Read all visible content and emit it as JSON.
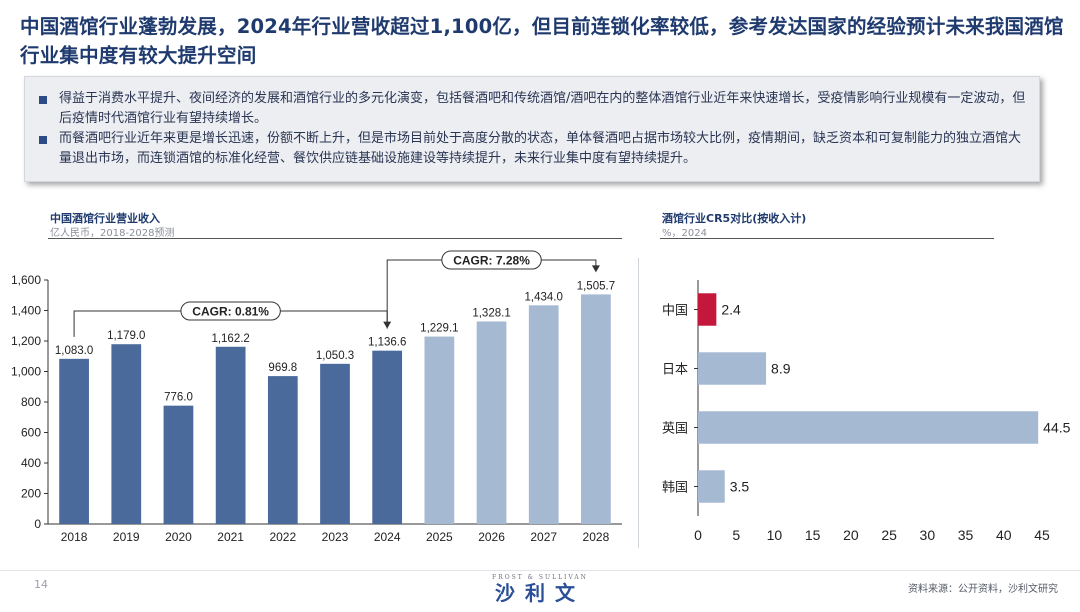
{
  "header": {
    "title": "中国酒馆行业蓬勃发展，2024年行业营收超过1,100亿，但目前连锁化率较低，参考发达国家的经验预计未来我国酒馆行业集中度有较大提升空间"
  },
  "summary": {
    "bullets": [
      "得益于消费水平提升、夜间经济的发展和酒馆行业的多元化演变，包括餐酒吧和传统酒馆/酒吧在内的整体酒馆行业近年来快速增长，受疫情影响行业规模有一定波动，但后疫情时代酒馆行业有望持续增长。",
      "而餐酒吧行业近年来更是增长迅速，份额不断上升，但是市场目前处于高度分散的状态，单体餐酒吧占据市场较大比例，疫情期间，缺乏资本和可复制能力的独立酒馆大量退出市场，而连锁酒馆的标准化经营、餐饮供应链基础设施建设等持续提升，未来行业集中度有望持续提升。"
    ]
  },
  "colors": {
    "actual_bar": "#4a6a9c",
    "forecast_bar": "#a6b9d3",
    "highlight_bar": "#c4173c",
    "hbar_default": "#a6b9d3"
  },
  "chart_data": [
    {
      "type": "bar",
      "title": "中国酒馆行业营业收入",
      "subtitle": "亿人民币，2018-2028预测",
      "categories": [
        "2018",
        "2019",
        "2020",
        "2021",
        "2022",
        "2023",
        "2024",
        "2025",
        "2026",
        "2027",
        "2028"
      ],
      "values": [
        1083.0,
        1179.0,
        776.0,
        1162.2,
        969.8,
        1050.3,
        1136.6,
        1229.1,
        1328.1,
        1434.0,
        1505.7
      ],
      "value_labels": [
        "1,083.0",
        "1,179.0",
        "776.0",
        "1,162.2",
        "969.8",
        "1,050.3",
        "1,136.6",
        "1,229.1",
        "1,328.1",
        "1,434.0",
        "1,505.7"
      ],
      "forecast_from": "2025",
      "ylim": [
        0,
        1600
      ],
      "yticks": [
        0,
        200,
        400,
        600,
        800,
        1000,
        1200,
        1400,
        1600
      ],
      "ytick_labels": [
        "0",
        "200",
        "400",
        "600",
        "800",
        "1,000",
        "1,200",
        "1,400",
        "1,600"
      ],
      "annotations": [
        {
          "label": "CAGR: 0.81%",
          "from": "2018",
          "to": "2024"
        },
        {
          "label": "CAGR: 7.28%",
          "from": "2024",
          "to": "2028"
        }
      ],
      "grid": false
    },
    {
      "type": "bar",
      "orientation": "horizontal",
      "title": "酒馆行业CR5对比(按收入计)",
      "subtitle": "%，2024",
      "categories": [
        "中国",
        "日本",
        "英国",
        "韩国"
      ],
      "values": [
        2.4,
        8.9,
        44.5,
        3.5
      ],
      "value_labels": [
        "2.4",
        "8.9",
        "44.5",
        "3.5"
      ],
      "highlight": "中国",
      "xlim": [
        0,
        45
      ],
      "xticks": [
        0,
        5,
        10,
        15,
        20,
        25,
        30,
        35,
        40,
        45
      ],
      "grid": false
    }
  ],
  "footer": {
    "page_number": "14",
    "logo_text": "沙利文",
    "logo_top": "FROST & SULLIVAN",
    "source": "资料来源：公开资料，沙利文研究"
  }
}
